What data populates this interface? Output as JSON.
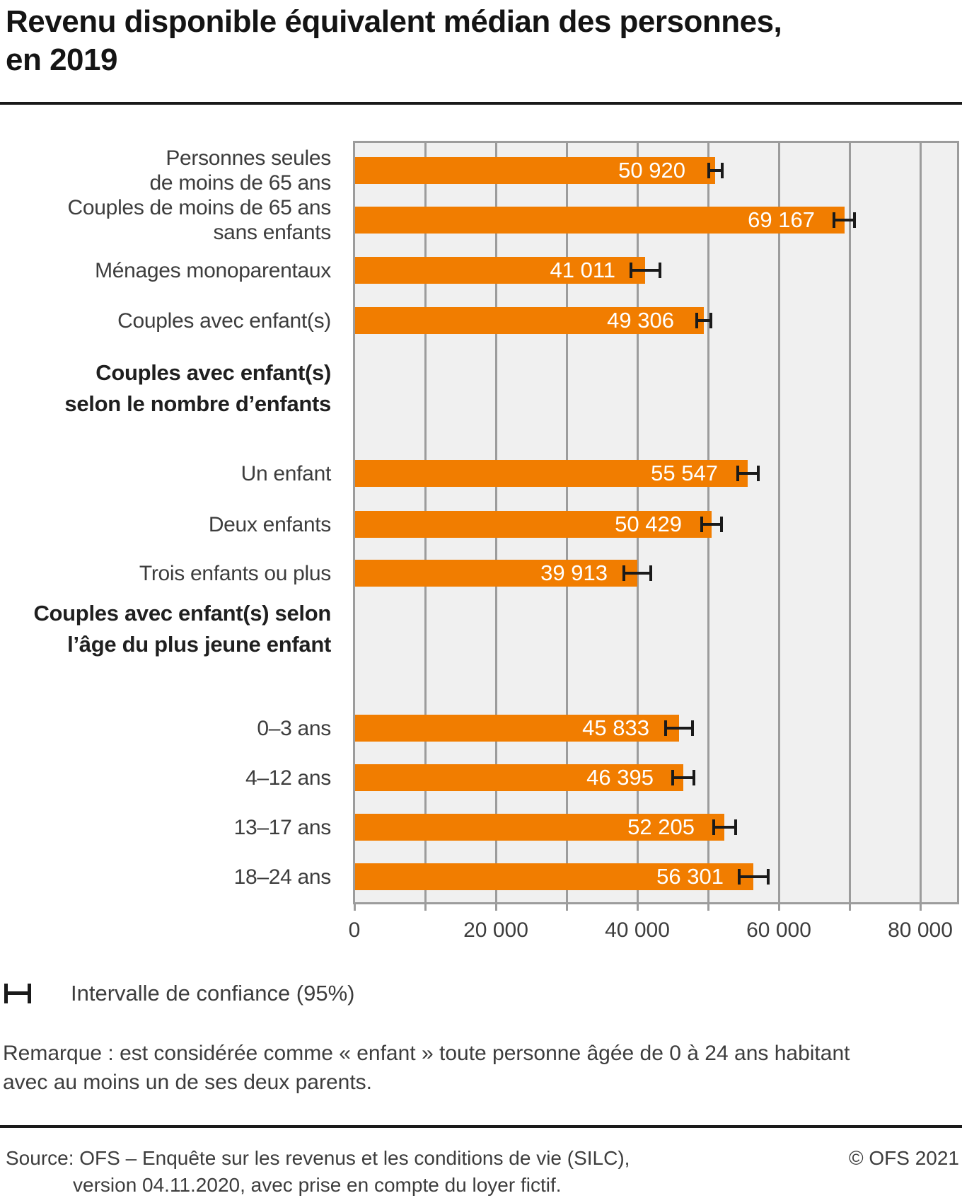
{
  "page": {
    "title_lines": [
      "Revenu disponible équivalent médian des personnes,",
      "en 2019"
    ],
    "legend": {
      "label": "Intervalle de confiance (95%)"
    },
    "remark_lines": [
      "Remarque : est considérée comme « enfant » toute personne âgée de 0 à 24 ans habitant",
      "avec au moins un de ses deux parents."
    ],
    "footer": {
      "source_label": "Source:",
      "source_line1": "OFS – Enquête sur les revenus et les conditions de vie (SILC),",
      "source_line2": "version 04.11.2020, avec prise en compte du loyer fictif.",
      "copyright": "© OFS 2021"
    },
    "colors": {
      "bar": "#f17d00",
      "plot_background": "#f0f0f0",
      "gridline": "#9c9c9c",
      "error_bar": "#1a1a1a",
      "rule": "#1a1a1a"
    }
  },
  "chart_data": {
    "type": "bar",
    "orientation": "horizontal",
    "title": "Revenu disponible équivalent médian des personnes, en 2019",
    "legend": "Intervalle de confiance (95%)",
    "grid": true,
    "x_axis": {
      "tick_labels": [
        "0",
        "20 000",
        "40 000",
        "60 000",
        "80 000"
      ],
      "tick_values": [
        0,
        20000,
        40000,
        60000,
        80000
      ],
      "range": [
        0,
        85100
      ],
      "gridline_step": 10000
    },
    "error_bars": "intervalle de confiance 95%, demi-largeur estimée en unités",
    "rows": [
      {
        "type": "bar",
        "label_lines": [
          "Personnes seules",
          "de moins de 65 ans"
        ],
        "label": "Personnes seules de moins de 65 ans",
        "value": 50920,
        "value_label": "50 920",
        "ci_half_est": 1150
      },
      {
        "type": "bar",
        "label_lines": [
          "Couples de moins de 65 ans",
          "sans enfants"
        ],
        "label": "Couples de moins de 65 ans sans enfants",
        "value": 69167,
        "value_label": "69 167",
        "ci_half_est": 1650
      },
      {
        "type": "bar",
        "label_lines": [
          "Ménages monoparentaux"
        ],
        "label": "Ménages monoparentaux",
        "value": 41011,
        "value_label": "41 011",
        "ci_half_est": 2250
      },
      {
        "type": "bar",
        "label_lines": [
          "Couples avec enfant(s)"
        ],
        "label": "Couples avec enfant(s)",
        "value": 49306,
        "value_label": "49 306",
        "ci_half_est": 1200
      },
      {
        "type": "group_header",
        "label_lines": [
          "Couples avec enfant(s)",
          "selon le nombre d’enfants"
        ],
        "label": "Couples avec enfant(s) selon le nombre d’enfants"
      },
      {
        "type": "bar",
        "label_lines": [
          "Un enfant"
        ],
        "label": "Un enfant",
        "value": 55547,
        "value_label": "55 547",
        "ci_half_est": 1650
      },
      {
        "type": "bar",
        "label_lines": [
          "Deux enfants"
        ],
        "label": "Deux enfants",
        "value": 50429,
        "value_label": "50 429",
        "ci_half_est": 1600
      },
      {
        "type": "bar",
        "label_lines": [
          "Trois enfants ou plus"
        ],
        "label": "Trois enfants ou plus",
        "value": 39913,
        "value_label": "39 913",
        "ci_half_est": 2100
      },
      {
        "type": "group_header",
        "label_lines": [
          "Couples avec enfant(s) selon",
          "l’âge du plus jeune enfant"
        ],
        "label": "Couples avec enfant(s) selon l’âge du plus jeune enfant"
      },
      {
        "type": "bar",
        "label_lines": [
          "0–3 ans"
        ],
        "label": "0–3 ans",
        "value": 45833,
        "value_label": "45 833",
        "ci_half_est": 2100
      },
      {
        "type": "bar",
        "label_lines": [
          "4–12 ans"
        ],
        "label": "4–12 ans",
        "value": 46395,
        "value_label": "46 395",
        "ci_half_est": 1700
      },
      {
        "type": "bar",
        "label_lines": [
          "13–17 ans"
        ],
        "label": "13–17 ans",
        "value": 52205,
        "value_label": "52 205",
        "ci_half_est": 1750
      },
      {
        "type": "bar",
        "label_lines": [
          "18–24 ans"
        ],
        "label": "18–24 ans",
        "value": 56301,
        "value_label": "56 301",
        "ci_half_est": 2250
      }
    ]
  }
}
